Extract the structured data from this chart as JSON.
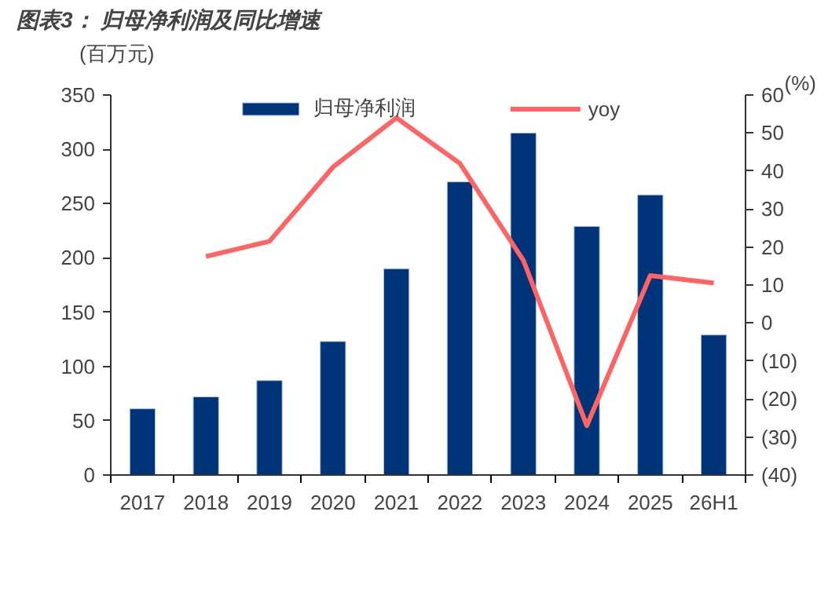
{
  "chart_data": {
    "type": "bar",
    "title": "图表3： 归母净利润及同比增速",
    "ylabel": "(百万元)",
    "y2label": "(%)",
    "categories": [
      "2017",
      "2018",
      "2019",
      "2020",
      "2021",
      "2022",
      "2023",
      "2024",
      "2025",
      "26H1"
    ],
    "series": [
      {
        "name": "归母净利润",
        "color": "#003478",
        "values": [
          61,
          72,
          87,
          123,
          190,
          270,
          315,
          229,
          258,
          129
        ]
      },
      {
        "name": "yoy",
        "type": "line",
        "axis": "y2",
        "color": "#ff6464",
        "values": [
          null,
          17.5,
          21.5,
          41,
          54,
          42,
          16.5,
          -27,
          12.5,
          10.5
        ]
      }
    ],
    "ylim": [
      0,
      350
    ],
    "yticks": [
      0,
      50,
      100,
      150,
      200,
      250,
      300,
      350
    ],
    "y2lim": [
      -40,
      60
    ],
    "y2ticks": [
      {
        "value": -40,
        "label": "(40)"
      },
      {
        "value": -30,
        "label": "(30)"
      },
      {
        "value": -20,
        "label": "(20)"
      },
      {
        "value": -10,
        "label": "(10)"
      },
      0,
      10,
      20,
      30,
      40,
      50,
      60
    ],
    "grid": false,
    "legend": "top",
    "marker": "none",
    "line_style": "solid"
  }
}
